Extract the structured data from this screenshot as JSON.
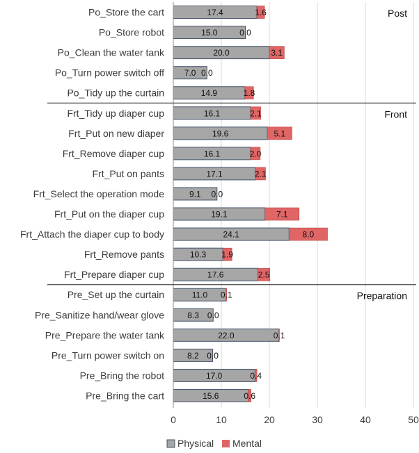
{
  "chart_data": {
    "type": "bar",
    "orientation": "horizontal",
    "stacked": true,
    "title": "",
    "xlabel": "",
    "ylabel": "",
    "xlim": [
      0,
      50
    ],
    "xticks": [
      0,
      10,
      20,
      30,
      40,
      50
    ],
    "grid": "vertical",
    "legend_position": "bottom",
    "series": [
      {
        "name": "Physical",
        "color": "#a6a6a6"
      },
      {
        "name": "Mental",
        "color": "#e06666"
      }
    ],
    "groups": [
      {
        "label": "Post",
        "rows": [
          {
            "label": "Po_Store the cart",
            "physical": 17.4,
            "physical_label": "17.4",
            "mental": 1.6,
            "mental_label": "1.6"
          },
          {
            "label": "Po_Store robot",
            "physical": 15.0,
            "physical_label": "15.0",
            "mental": 0.0,
            "mental_label": "0.0"
          },
          {
            "label": "Po_Clean the water tank",
            "physical": 20.0,
            "physical_label": "20.0",
            "mental": 3.1,
            "mental_label": "3.1"
          },
          {
            "label": "Po_Turn power switch off",
            "physical": 7.0,
            "physical_label": "7.0",
            "mental": 0.0,
            "mental_label": "0.0"
          },
          {
            "label": "Po_Tidy up the curtain",
            "physical": 14.9,
            "physical_label": "14.9",
            "mental": 1.8,
            "mental_label": "1.8"
          }
        ]
      },
      {
        "label": "Front",
        "rows": [
          {
            "label": "Frt_Tidy up diaper cup",
            "physical": 16.1,
            "physical_label": "16.1",
            "mental": 2.1,
            "mental_label": "2.1"
          },
          {
            "label": "Frt_Put on new diaper",
            "physical": 19.6,
            "physical_label": "19.6",
            "mental": 5.1,
            "mental_label": "5.1"
          },
          {
            "label": "Frt_Remove diaper cup",
            "physical": 16.1,
            "physical_label": "16.1",
            "mental": 2.0,
            "mental_label": "2.0"
          },
          {
            "label": "Frt_Put on pants",
            "physical": 17.1,
            "physical_label": "17.1",
            "mental": 2.1,
            "mental_label": "2.1"
          },
          {
            "label": "Frt_Select the operation mode",
            "physical": 9.1,
            "physical_label": "9.1",
            "mental": 0.0,
            "mental_label": "0.0"
          },
          {
            "label": "Frt_Put on the diaper cup",
            "physical": 19.1,
            "physical_label": "19.1",
            "mental": 7.1,
            "mental_label": "7.1"
          },
          {
            "label": "Frt_Attach the diaper cup to body",
            "physical": 24.1,
            "physical_label": "24.1",
            "mental": 8.0,
            "mental_label": "8.0"
          },
          {
            "label": "Frt_Remove pants",
            "physical": 10.3,
            "physical_label": "10.3",
            "mental": 1.9,
            "mental_label": "1.9"
          },
          {
            "label": "Frt_Prepare diaper cup",
            "physical": 17.6,
            "physical_label": "17.6",
            "mental": 2.5,
            "mental_label": "2.5"
          }
        ]
      },
      {
        "label": "Preparation",
        "rows": [
          {
            "label": "Pre_Set up the curtain",
            "physical": 11.0,
            "physical_label": "11.0",
            "mental": 0.1,
            "mental_label": "0.1"
          },
          {
            "label": "Pre_Sanitize hand/wear glove",
            "physical": 8.3,
            "physical_label": "8.3",
            "mental": 0.0,
            "mental_label": "0.0"
          },
          {
            "label": "Pre_Prepare the water tank",
            "physical": 22.0,
            "physical_label": "22.0",
            "mental": 0.1,
            "mental_label": "0.1"
          },
          {
            "label": "Pre_Turn power switch on",
            "physical": 8.2,
            "physical_label": "8.2",
            "mental": 0.0,
            "mental_label": "0.0"
          },
          {
            "label": "Pre_Bring the robot",
            "physical": 17.0,
            "physical_label": "17.0",
            "mental": 0.4,
            "mental_label": "0.4"
          },
          {
            "label": "Pre_Bring the cart",
            "physical": 15.6,
            "physical_label": "15.6",
            "mental": 0.6,
            "mental_label": "0.6"
          }
        ]
      }
    ]
  }
}
